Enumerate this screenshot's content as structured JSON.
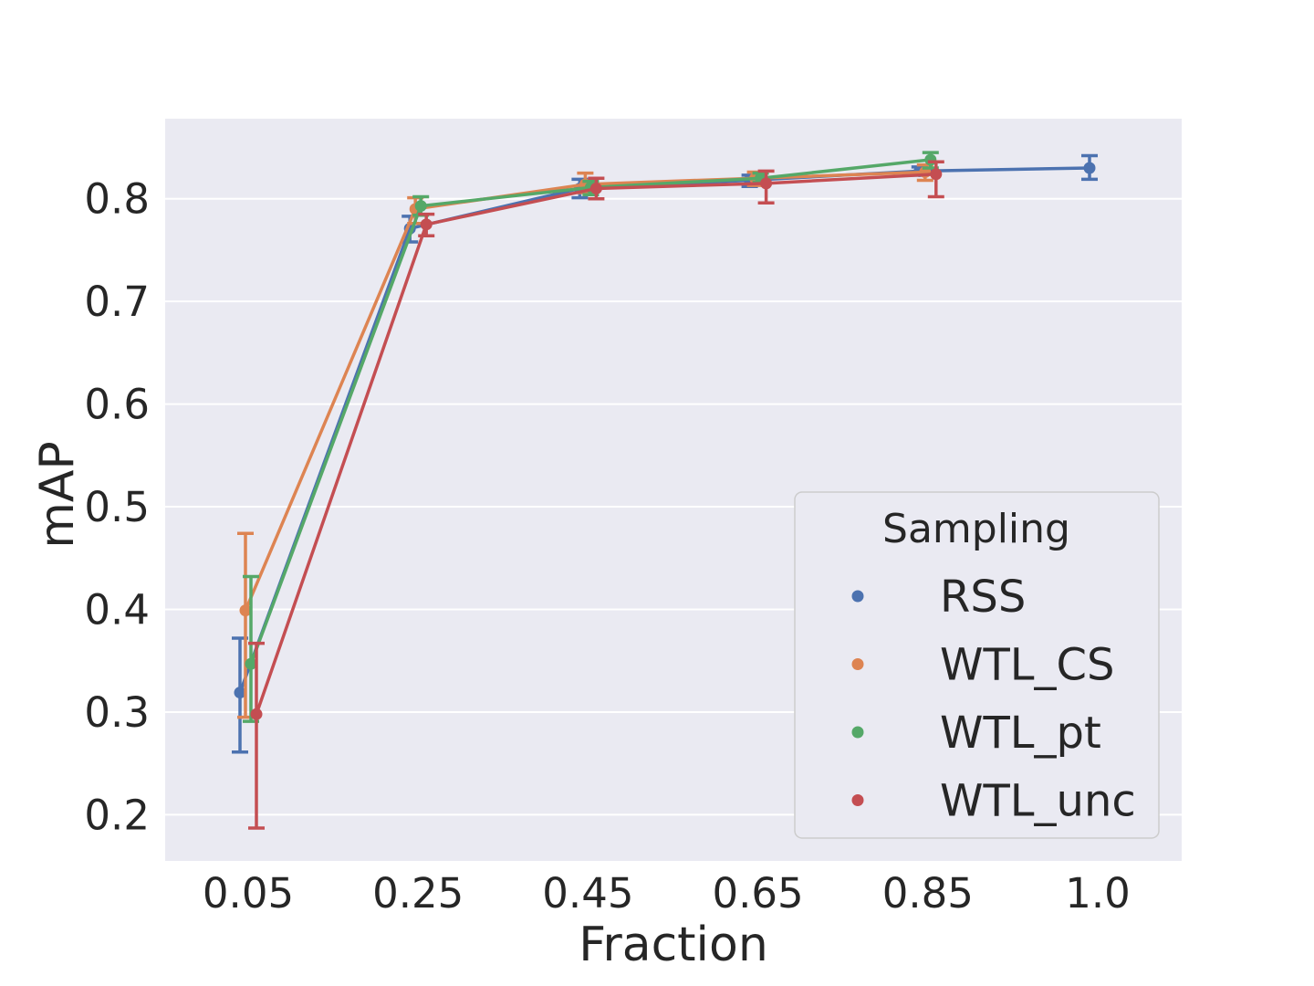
{
  "chart_data": {
    "type": "line",
    "title": "",
    "xlabel": "Fraction",
    "ylabel": "mAP",
    "categories": [
      "0.05",
      "0.25",
      "0.45",
      "0.65",
      "0.85",
      "1.0"
    ],
    "ylim": [
      0.155,
      0.878
    ],
    "yticks": [
      0.2,
      0.3,
      0.4,
      0.5,
      0.6,
      0.7,
      0.8
    ],
    "ytick_labels": [
      "0.2",
      "0.3",
      "0.4",
      "0.5",
      "0.6",
      "0.7",
      "0.8"
    ],
    "grid": true,
    "error_bars": true,
    "legend": {
      "title": "Sampling",
      "placement": "lower-right"
    },
    "series": [
      {
        "name": "RSS",
        "color": "#4c72b0",
        "values": [
          0.319,
          0.771,
          0.81,
          0.818,
          0.827,
          0.83
        ],
        "err_low": [
          0.261,
          0.758,
          0.801,
          0.812,
          0.823,
          0.819
        ],
        "err_high": [
          0.372,
          0.783,
          0.819,
          0.823,
          0.831,
          0.842
        ]
      },
      {
        "name": "WTL_CS",
        "color": "#dd8452",
        "values": [
          0.399,
          0.79,
          0.814,
          0.82,
          0.826,
          null
        ],
        "err_low": [
          0.295,
          0.776,
          0.806,
          0.813,
          0.818,
          null
        ],
        "err_high": [
          0.474,
          0.801,
          0.825,
          0.826,
          0.833,
          null
        ]
      },
      {
        "name": "WTL_pt",
        "color": "#55a868",
        "values": [
          0.347,
          0.793,
          0.811,
          0.82,
          0.838,
          null
        ],
        "err_low": [
          0.291,
          0.784,
          0.804,
          0.816,
          0.83,
          null
        ],
        "err_high": [
          0.432,
          0.802,
          0.817,
          0.825,
          0.845,
          null
        ]
      },
      {
        "name": "WTL_unc",
        "color": "#c44e52",
        "values": [
          0.298,
          0.775,
          0.81,
          0.815,
          0.824,
          null
        ],
        "err_low": [
          0.187,
          0.764,
          0.8,
          0.796,
          0.802,
          null
        ],
        "err_high": [
          0.367,
          0.785,
          0.82,
          0.827,
          0.836,
          null
        ]
      }
    ]
  }
}
